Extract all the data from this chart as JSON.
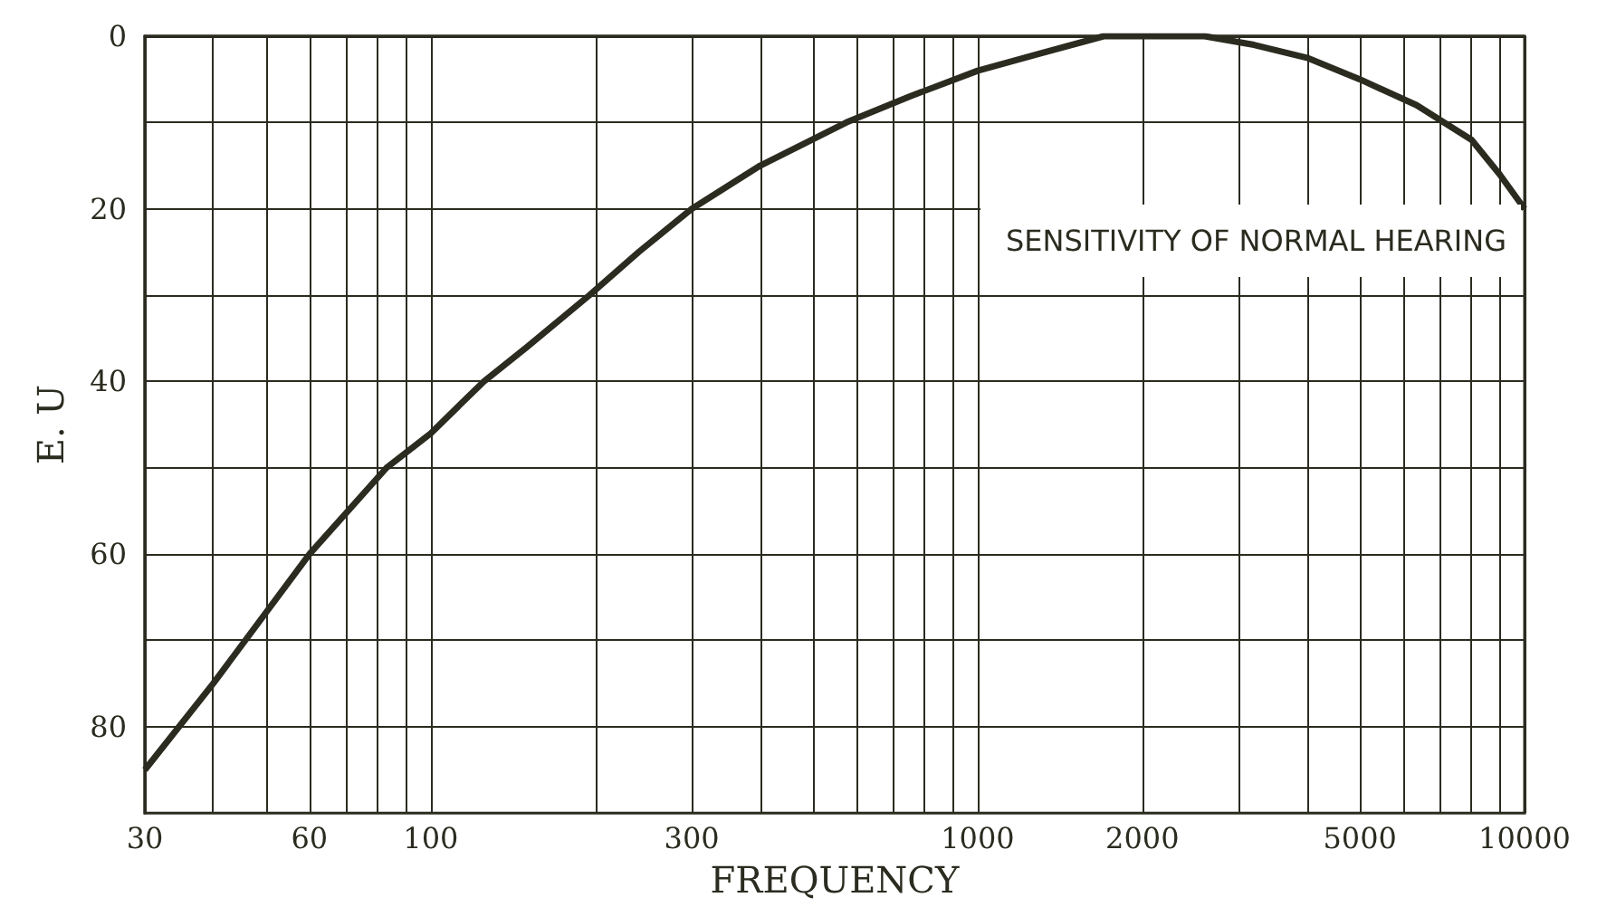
{
  "chart_data": {
    "type": "line",
    "xlabel": "FREQUENCY",
    "ylabel": "E. U",
    "annotations": [
      "SENSITIVITY OF NORMAL HEARING"
    ],
    "x": [
      30,
      40,
      60,
      83,
      100,
      125,
      150,
      195,
      240,
      300,
      400,
      575,
      750,
      1000,
      1300,
      1700,
      2600,
      3200,
      4000,
      5000,
      6350,
      8000,
      9000,
      10000
    ],
    "series": [
      {
        "color": "#2b2b20",
        "values": [
          85,
          75,
          60,
          50,
          46,
          40,
          36,
          30,
          25,
          20,
          15,
          10,
          7,
          4,
          2,
          0,
          0,
          1,
          2.5,
          5,
          8,
          12,
          16,
          20
        ]
      }
    ],
    "log": "x",
    "xlim": [
      30,
      10000
    ],
    "ylim": [
      90,
      0
    ],
    "xticks": [
      30,
      {
        "value": 40,
        "label": null
      },
      {
        "value": 50,
        "label": null
      },
      60,
      {
        "value": 70,
        "label": null
      },
      {
        "value": 80,
        "label": null
      },
      {
        "value": 90,
        "label": null
      },
      100,
      {
        "value": 200,
        "label": null
      },
      300,
      {
        "value": 400,
        "label": null
      },
      {
        "value": 500,
        "label": null
      },
      {
        "value": 600,
        "label": null
      },
      {
        "value": 700,
        "label": null
      },
      {
        "value": 800,
        "label": null
      },
      {
        "value": 900,
        "label": null
      },
      1000,
      2000,
      {
        "value": 3000,
        "label": null
      },
      {
        "value": 4000,
        "label": null
      },
      5000,
      {
        "value": 6000,
        "label": null
      },
      {
        "value": 7000,
        "label": null
      },
      {
        "value": 8000,
        "label": null
      },
      {
        "value": 9000,
        "label": null
      },
      10000
    ],
    "yticks": [
      0,
      {
        "value": 10,
        "label": null
      },
      20,
      {
        "value": 30,
        "label": null
      },
      40,
      {
        "value": 50,
        "label": null
      },
      60,
      {
        "value": 70,
        "label": null
      },
      80
    ],
    "grid": true,
    "marker": "none",
    "line_style": "solid"
  }
}
